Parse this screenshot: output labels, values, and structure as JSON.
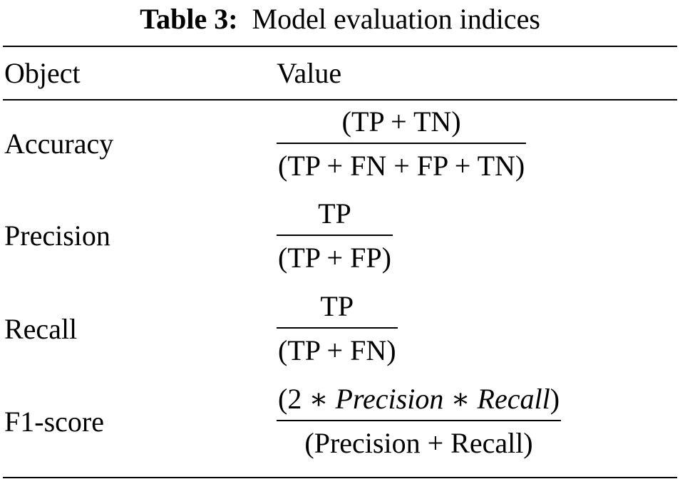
{
  "caption": {
    "label": "Table 3:",
    "text": "Model evaluation indices"
  },
  "header": {
    "col1": "Object",
    "col2": "Value"
  },
  "rows": [
    {
      "object": "Accuracy",
      "numerator": "(TP + TN)",
      "denominator": "(TP + FN + FP + TN)"
    },
    {
      "object": "Precision",
      "numerator": "TP",
      "denominator": "(TP + FP)"
    },
    {
      "object": "Recall",
      "numerator": "TP",
      "denominator": "(TP + FN)"
    },
    {
      "object": "F1-score",
      "numerator_parts": [
        "(2 ∗ ",
        "Precision",
        " ∗ ",
        "Recall",
        ")"
      ],
      "denominator": "(Precision + Recall)"
    }
  ]
}
